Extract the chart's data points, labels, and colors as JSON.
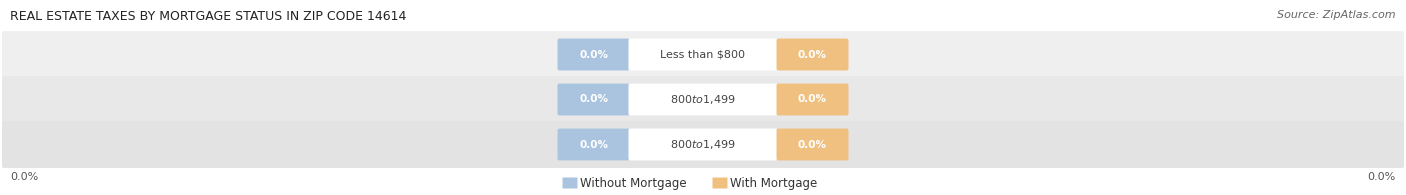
{
  "title": "REAL ESTATE TAXES BY MORTGAGE STATUS IN ZIP CODE 14614",
  "source": "Source: ZipAtlas.com",
  "categories": [
    "Less than $800",
    "$800 to $1,499",
    "$800 to $1,499"
  ],
  "without_mortgage": [
    0.0,
    0.0,
    0.0
  ],
  "with_mortgage": [
    0.0,
    0.0,
    0.0
  ],
  "without_mortgage_color": "#aac4e0",
  "with_mortgage_color": "#f0c080",
  "title_fontsize": 9,
  "source_fontsize": 8,
  "legend_label_without": "Without Mortgage",
  "legend_label_with": "With Mortgage",
  "x_left_label": "0.0%",
  "x_right_label": "0.0%",
  "background_color": "#ffffff",
  "row_colors": [
    "#efefef",
    "#e8e8e8",
    "#e3e3e3"
  ],
  "row_line_color": "#d0d0d0",
  "label_box_color": "#ffffff",
  "label_text_color": "#444444"
}
